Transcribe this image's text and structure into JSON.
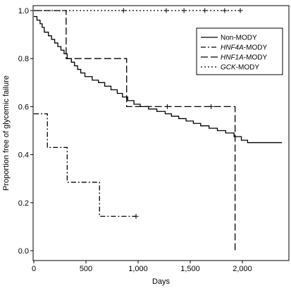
{
  "chart_data": {
    "type": "line",
    "subtype": "kaplan-meier",
    "title": "",
    "xlabel": "Days",
    "ylabel": "Proportion free of glycemic failure",
    "xlim": [
      0,
      2450
    ],
    "ylim": [
      -0.05,
      1.02
    ],
    "x_ticks": [
      0,
      500,
      1000,
      1500,
      2000
    ],
    "x_tick_labels": [
      "0",
      "500",
      "1,000",
      "1,500",
      "2,000"
    ],
    "y_ticks": [
      0.0,
      0.2,
      0.4,
      0.6,
      0.8,
      1.0
    ],
    "y_tick_labels": [
      "0.0",
      "0.2",
      "0.4",
      "0.6",
      "0.8",
      "1.0"
    ],
    "grid": false,
    "legend_position": "top-right",
    "series": [
      {
        "name": "Non-MODY",
        "name_parts": [
          {
            "text": "Non-MODY",
            "italic": false
          }
        ],
        "style": "solid",
        "points": [
          [
            0,
            0.975
          ],
          [
            30,
            0.975
          ],
          [
            30,
            0.96
          ],
          [
            60,
            0.96
          ],
          [
            60,
            0.945
          ],
          [
            80,
            0.945
          ],
          [
            80,
            0.93
          ],
          [
            100,
            0.93
          ],
          [
            100,
            0.91
          ],
          [
            140,
            0.91
          ],
          [
            140,
            0.895
          ],
          [
            170,
            0.895
          ],
          [
            170,
            0.88
          ],
          [
            200,
            0.88
          ],
          [
            200,
            0.865
          ],
          [
            230,
            0.865
          ],
          [
            230,
            0.85
          ],
          [
            260,
            0.85
          ],
          [
            260,
            0.835
          ],
          [
            290,
            0.835
          ],
          [
            290,
            0.82
          ],
          [
            320,
            0.82
          ],
          [
            320,
            0.8
          ],
          [
            360,
            0.8
          ],
          [
            360,
            0.785
          ],
          [
            390,
            0.785
          ],
          [
            390,
            0.77
          ],
          [
            420,
            0.77
          ],
          [
            420,
            0.755
          ],
          [
            450,
            0.755
          ],
          [
            450,
            0.74
          ],
          [
            490,
            0.74
          ],
          [
            490,
            0.725
          ],
          [
            560,
            0.725
          ],
          [
            560,
            0.71
          ],
          [
            620,
            0.71
          ],
          [
            620,
            0.7
          ],
          [
            680,
            0.7
          ],
          [
            680,
            0.685
          ],
          [
            740,
            0.685
          ],
          [
            740,
            0.67
          ],
          [
            800,
            0.67
          ],
          [
            800,
            0.655
          ],
          [
            850,
            0.655
          ],
          [
            850,
            0.64
          ],
          [
            900,
            0.64
          ],
          [
            900,
            0.625
          ],
          [
            960,
            0.625
          ],
          [
            960,
            0.61
          ],
          [
            1020,
            0.61
          ],
          [
            1020,
            0.6
          ],
          [
            1100,
            0.6
          ],
          [
            1100,
            0.59
          ],
          [
            1180,
            0.59
          ],
          [
            1180,
            0.58
          ],
          [
            1260,
            0.58
          ],
          [
            1260,
            0.57
          ],
          [
            1320,
            0.57
          ],
          [
            1320,
            0.56
          ],
          [
            1390,
            0.56
          ],
          [
            1390,
            0.55
          ],
          [
            1460,
            0.55
          ],
          [
            1460,
            0.54
          ],
          [
            1530,
            0.54
          ],
          [
            1530,
            0.53
          ],
          [
            1600,
            0.53
          ],
          [
            1600,
            0.52
          ],
          [
            1680,
            0.52
          ],
          [
            1680,
            0.51
          ],
          [
            1760,
            0.51
          ],
          [
            1760,
            0.5
          ],
          [
            1840,
            0.5
          ],
          [
            1840,
            0.49
          ],
          [
            1920,
            0.49
          ],
          [
            1920,
            0.475
          ],
          [
            1990,
            0.475
          ],
          [
            1990,
            0.46
          ],
          [
            2050,
            0.46
          ],
          [
            2050,
            0.45
          ],
          [
            2380,
            0.45
          ]
        ],
        "censored": []
      },
      {
        "name": "HNF4A-MODY",
        "name_parts": [
          {
            "text": "HNF4A",
            "italic": true
          },
          {
            "text": "-MODY",
            "italic": false
          }
        ],
        "style": "dashdot",
        "points": [
          [
            0,
            0.57
          ],
          [
            130,
            0.57
          ],
          [
            130,
            0.43
          ],
          [
            320,
            0.43
          ],
          [
            320,
            0.285
          ],
          [
            630,
            0.285
          ],
          [
            630,
            0.143
          ],
          [
            980,
            0.143
          ]
        ],
        "censored": [
          [
            980,
            0.143
          ]
        ]
      },
      {
        "name": "HNF1A-MODY",
        "name_parts": [
          {
            "text": "HNF1A",
            "italic": true
          },
          {
            "text": "-MODY",
            "italic": false
          }
        ],
        "style": "longdash",
        "points": [
          [
            0,
            1.0
          ],
          [
            310,
            1.0
          ],
          [
            310,
            0.8
          ],
          [
            890,
            0.8
          ],
          [
            890,
            0.6
          ],
          [
            1930,
            0.6
          ],
          [
            1930,
            0.0
          ]
        ],
        "censored": [
          [
            1280,
            0.6
          ],
          [
            1700,
            0.6
          ]
        ]
      },
      {
        "name": "GCK-MODY",
        "name_parts": [
          {
            "text": "GCK",
            "italic": true
          },
          {
            "text": "-MODY",
            "italic": false
          }
        ],
        "style": "dotted",
        "points": [
          [
            0,
            1.0
          ],
          [
            1980,
            1.0
          ]
        ],
        "censored": [
          [
            860,
            1.0
          ],
          [
            1270,
            1.0
          ],
          [
            1440,
            1.0
          ],
          [
            1640,
            1.0
          ],
          [
            1830,
            1.0
          ],
          [
            1980,
            1.0
          ]
        ]
      }
    ]
  }
}
